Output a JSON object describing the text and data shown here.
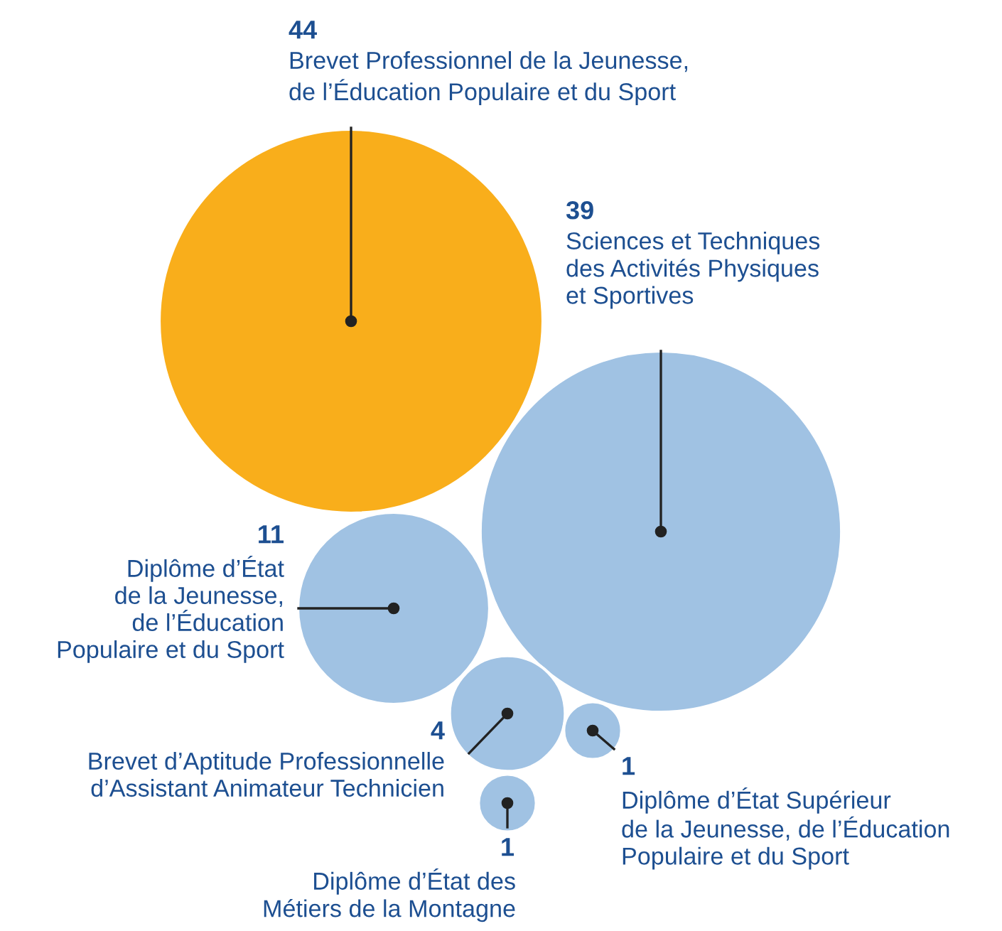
{
  "chart_data": {
    "type": "other",
    "categories": [
      "Brevet Professionnel de la Jeunesse,\nde l’Éducation Populaire et du Sport",
      "Sciences et Techniques\ndes Activités Physiques\net Sportives",
      "Diplôme d’État\nde la Jeunesse,\nde l’Éducation\nPopulaire et du Sport",
      "Brevet d’Aptitude Professionnelle\nd’Assistant Animateur Technicien",
      "Diplôme d’État Supérieur\nde la Jeunesse, de l’Éducation\nPopulaire et du Sport",
      "Diplôme d’État des\nMétiers de la Montagne"
    ],
    "values": [
      44,
      39,
      11,
      4,
      1,
      1
    ],
    "colors": [
      "#f9ae1b",
      "#a0c2e3",
      "#a0c2e3",
      "#a0c2e3",
      "#a0c2e3",
      "#a0c2e3"
    ],
    "data_labels": true
  }
}
